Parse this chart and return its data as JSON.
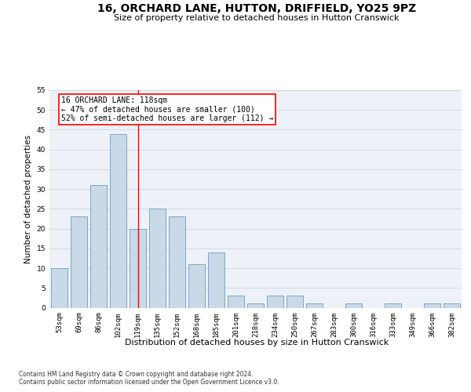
{
  "title": "16, ORCHARD LANE, HUTTON, DRIFFIELD, YO25 9PZ",
  "subtitle": "Size of property relative to detached houses in Hutton Cranswick",
  "xlabel": "Distribution of detached houses by size in Hutton Cranswick",
  "ylabel": "Number of detached properties",
  "footer1": "Contains HM Land Registry data © Crown copyright and database right 2024.",
  "footer2": "Contains public sector information licensed under the Open Government Licence v3.0.",
  "categories": [
    "53sqm",
    "69sqm",
    "86sqm",
    "102sqm",
    "119sqm",
    "135sqm",
    "152sqm",
    "168sqm",
    "185sqm",
    "201sqm",
    "218sqm",
    "234sqm",
    "250sqm",
    "267sqm",
    "283sqm",
    "300sqm",
    "316sqm",
    "333sqm",
    "349sqm",
    "366sqm",
    "382sqm"
  ],
  "values": [
    10,
    23,
    31,
    44,
    20,
    25,
    23,
    11,
    14,
    3,
    1,
    3,
    3,
    1,
    0,
    1,
    0,
    1,
    0,
    1,
    1
  ],
  "bar_color": "#c9d9e8",
  "bar_edge_color": "#7aa8c9",
  "grid_color": "#d0d8e8",
  "background_color": "#eef2f8",
  "ylim": [
    0,
    55
  ],
  "yticks": [
    0,
    5,
    10,
    15,
    20,
    25,
    30,
    35,
    40,
    45,
    50,
    55
  ],
  "property_label": "16 ORCHARD LANE: 118sqm",
  "annotation_line1": "← 47% of detached houses are smaller (100)",
  "annotation_line2": "52% of semi-detached houses are larger (112) →",
  "vline_bar_index": 4,
  "title_fontsize": 10,
  "subtitle_fontsize": 8,
  "tick_fontsize": 6.5,
  "ylabel_fontsize": 7.5,
  "xlabel_fontsize": 8,
  "annotation_fontsize": 7,
  "footer_fontsize": 5.5
}
